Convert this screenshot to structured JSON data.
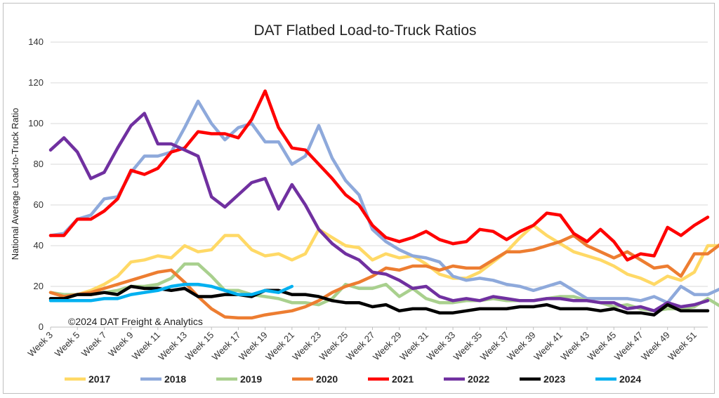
{
  "chart_data": {
    "type": "line",
    "title": "DAT Flatbed Load-to-Truck Ratios",
    "xlabel": "",
    "ylabel": "National Average Load-to-Truck Ratio",
    "ylim": [
      0,
      140
    ],
    "yticks": [
      "0",
      "20",
      "40",
      "60",
      "80",
      "100",
      "120",
      "140"
    ],
    "xlim": [
      3,
      52
    ],
    "xtick_labels": [
      "Week 3",
      "Week 5",
      "Week 7",
      "Week 9",
      "Week 11",
      "Week 13",
      "Week 15",
      "Week 17",
      "Week 19",
      "Week 21",
      "Week 23",
      "Week 25",
      "Week 27",
      "Week 29",
      "Week 31",
      "Week 33",
      "Week 35",
      "Week 37",
      "Week 39",
      "Week 41",
      "Week 43",
      "Week 45",
      "Week 47",
      "Week 49",
      "Week 51"
    ],
    "xtick_weeks": [
      3,
      5,
      7,
      9,
      11,
      13,
      15,
      17,
      19,
      21,
      23,
      25,
      27,
      29,
      31,
      33,
      35,
      37,
      39,
      41,
      43,
      45,
      47,
      49,
      51
    ],
    "gridlines": true,
    "legend_position": "bottom",
    "annotation": "©2024 DAT Freight & Analytics",
    "series": [
      {
        "name": "2017",
        "color": "#FFD966",
        "start_week": 3,
        "values": [
          14,
          14,
          16,
          18,
          21,
          25,
          32,
          33,
          35,
          34,
          40,
          37,
          38,
          45,
          45,
          38,
          35,
          36,
          33,
          36,
          48,
          44,
          40,
          39,
          33,
          36,
          34,
          35,
          31,
          26,
          24,
          24,
          27,
          32,
          37,
          44,
          50,
          45,
          41,
          37,
          35,
          33,
          30,
          26,
          24,
          21,
          25,
          23,
          27,
          40,
          40
        ]
      },
      {
        "name": "2018",
        "color": "#8EA9DB",
        "start_week": 3,
        "values": [
          45,
          46,
          53,
          55,
          63,
          64,
          76,
          84,
          84,
          86,
          98,
          111,
          100,
          92,
          98,
          100,
          91,
          91,
          80,
          84,
          99,
          83,
          72,
          65,
          48,
          42,
          38,
          35,
          34,
          32,
          25,
          23,
          24,
          23,
          21,
          20,
          18,
          20,
          22,
          18,
          14,
          14,
          14,
          14,
          13,
          15,
          12,
          20,
          16,
          16,
          19
        ]
      },
      {
        "name": "2019",
        "color": "#A9D08E",
        "start_week": 3,
        "values": [
          17,
          16,
          16,
          16,
          17,
          18,
          20,
          20,
          21,
          24,
          31,
          31,
          25,
          18,
          18,
          16,
          15,
          14,
          12,
          12,
          11,
          14,
          21,
          19,
          19,
          21,
          15,
          19,
          14,
          12,
          12,
          13,
          13,
          14,
          13,
          13,
          13,
          14,
          15,
          15,
          13,
          12,
          10,
          11,
          9,
          8,
          9,
          9,
          10,
          14,
          10
        ]
      },
      {
        "name": "2020",
        "color": "#ED7D31",
        "start_week": 3,
        "values": [
          17,
          15,
          16,
          17,
          19,
          21,
          23,
          25,
          27,
          28,
          22,
          15,
          9,
          5,
          4.5,
          4.5,
          6,
          7,
          8,
          10,
          13,
          17,
          20,
          22,
          25,
          29,
          28,
          30,
          30,
          28,
          30,
          29,
          29,
          33,
          37,
          37,
          38,
          40,
          42,
          45,
          40,
          37,
          34,
          37,
          33,
          29,
          30,
          25,
          36,
          36,
          41,
          41
        ]
      },
      {
        "name": "2021",
        "color": "#FF0000",
        "start_week": 3,
        "values": [
          45,
          45,
          53,
          53,
          57,
          63,
          77,
          75,
          78,
          86,
          88,
          96,
          95,
          95,
          93,
          102,
          116,
          98,
          88,
          87,
          80,
          73,
          65,
          60,
          50,
          44,
          42,
          44,
          47,
          43,
          41,
          42,
          48,
          47,
          43,
          47,
          50,
          56,
          55,
          46,
          42,
          48,
          42,
          33,
          36,
          35,
          49,
          45,
          50,
          54
        ]
      },
      {
        "name": "2022",
        "color": "#7030A0",
        "start_week": 3,
        "values": [
          87,
          93,
          86,
          73,
          76,
          88,
          99,
          105,
          90,
          90,
          87,
          84,
          64,
          59,
          65,
          71,
          73,
          58,
          70,
          60,
          48,
          41,
          36,
          33,
          27,
          26,
          23,
          19,
          20,
          15,
          13,
          14,
          13,
          15,
          14,
          13,
          13,
          14,
          14,
          13,
          13,
          12,
          12,
          9,
          10,
          8,
          12,
          10,
          11,
          13
        ]
      },
      {
        "name": "2023",
        "color": "#000000",
        "start_week": 3,
        "values": [
          14,
          14,
          16,
          16,
          17,
          16,
          20,
          19,
          19,
          18,
          19,
          15,
          15,
          16,
          16,
          15,
          18,
          18,
          16,
          16,
          15,
          13,
          12,
          12,
          10,
          11,
          8,
          9,
          9,
          7,
          7,
          8,
          9,
          9,
          9,
          10,
          10,
          11,
          9,
          9,
          9,
          8,
          9,
          7,
          7,
          6,
          11,
          8,
          8,
          8
        ]
      },
      {
        "name": "2024",
        "color": "#00B0F0",
        "start_week": 3,
        "values": [
          13,
          13,
          13,
          13,
          14,
          14,
          16,
          17,
          18,
          20,
          21,
          21,
          20,
          18,
          16,
          16,
          18,
          17,
          20
        ]
      }
    ]
  }
}
